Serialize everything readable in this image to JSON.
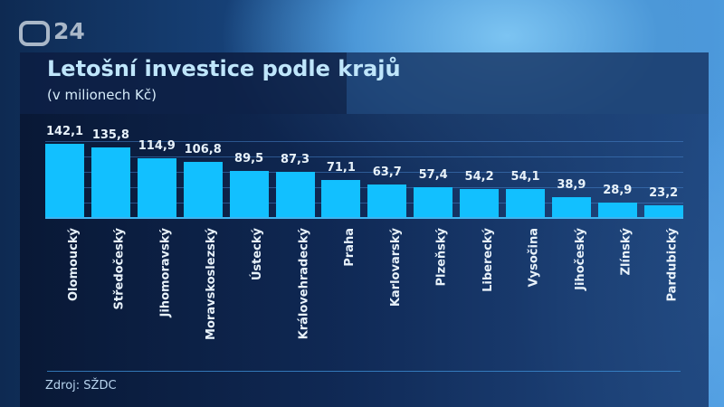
{
  "header": {
    "channel_logo": "ČT24",
    "logo_text": "24",
    "title": "Letošní investice podle krajů",
    "subtitle": "(v milionech Kč)"
  },
  "footer": {
    "source": "Zdroj: SŽDC"
  },
  "colors": {
    "bar": "#12c0ff",
    "title": "#bfe6fb",
    "panel": "#0c1e42"
  },
  "chart_data": {
    "type": "bar",
    "title": "Letošní investice podle krajů",
    "subtitle": "(v milionech Kč)",
    "xlabel": "",
    "ylabel": "miliony Kč",
    "categories": [
      "Olomoucký",
      "Středočeský",
      "Jihomoravský",
      "Moravskoslezský",
      "Ústecký",
      "Královehradecký",
      "Praha",
      "Karlovarský",
      "Plzeňský",
      "Liberecký",
      "Vysočina",
      "Jihočeský",
      "Zlínský",
      "Pardubický"
    ],
    "values": [
      142.1,
      135.8,
      114.9,
      106.8,
      89.5,
      87.3,
      71.1,
      63.7,
      57.4,
      54.2,
      54.1,
      38.9,
      28.9,
      23.2
    ],
    "value_labels": [
      "142,1",
      "135,8",
      "114,9",
      "106,8",
      "89,5",
      "87,3",
      "71,1",
      "63,7",
      "57,4",
      "54,2",
      "54,1",
      "38,9",
      "28,9",
      "23,2"
    ],
    "ylim": [
      0,
      150
    ],
    "grid": true,
    "legend": "none",
    "source": "Zdroj: SŽDC"
  }
}
